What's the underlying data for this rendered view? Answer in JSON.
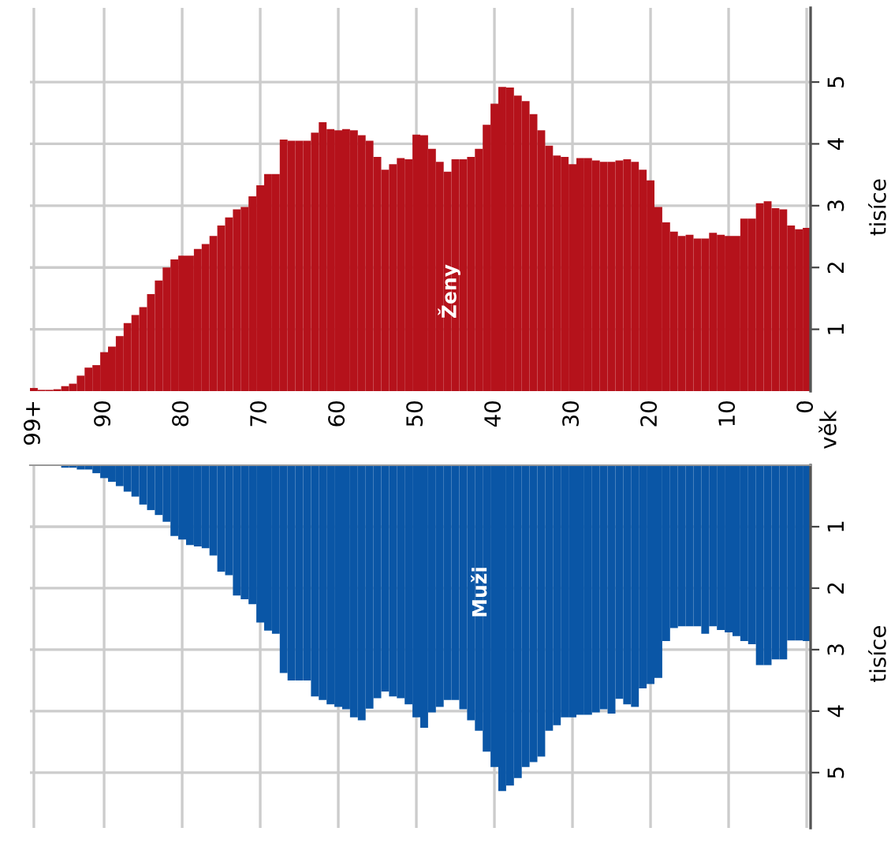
{
  "chart_data": [
    {
      "type": "bar",
      "annotations": [
        "věk"
      ],
      "ylabel": "tisíce",
      "x": [
        0,
        1,
        2,
        3,
        4,
        5,
        6,
        7,
        8,
        9,
        10,
        11,
        12,
        13,
        14,
        15,
        16,
        17,
        18,
        19,
        20,
        21,
        22,
        23,
        24,
        25,
        26,
        27,
        28,
        29,
        30,
        31,
        32,
        33,
        34,
        35,
        36,
        37,
        38,
        39,
        40,
        41,
        42,
        43,
        44,
        45,
        46,
        47,
        48,
        49,
        50,
        51,
        52,
        53,
        54,
        55,
        56,
        57,
        58,
        59,
        60,
        61,
        62,
        63,
        64,
        65,
        66,
        67,
        68,
        69,
        70,
        71,
        72,
        73,
        74,
        75,
        76,
        77,
        78,
        79,
        80,
        81,
        82,
        83,
        84,
        85,
        86,
        87,
        88,
        89,
        90,
        91,
        92,
        93,
        94,
        95,
        96,
        97,
        98,
        99
      ],
      "series": [
        {
          "name": "Ženy",
          "color": "#b5121b",
          "values": [
            2.64,
            2.62,
            2.68,
            2.94,
            2.96,
            3.07,
            3.04,
            2.79,
            2.79,
            2.51,
            2.51,
            2.53,
            2.56,
            2.47,
            2.47,
            2.53,
            2.51,
            2.58,
            2.73,
            2.98,
            3.41,
            3.58,
            3.71,
            3.75,
            3.73,
            3.71,
            3.71,
            3.73,
            3.77,
            3.77,
            3.67,
            3.79,
            3.81,
            3.97,
            4.22,
            4.48,
            4.69,
            4.78,
            4.91,
            4.92,
            4.65,
            4.31,
            3.92,
            3.79,
            3.75,
            3.75,
            3.55,
            3.71,
            3.92,
            4.14,
            4.15,
            3.75,
            3.77,
            3.67,
            3.58,
            3.79,
            4.05,
            4.14,
            4.22,
            4.24,
            4.22,
            4.24,
            4.35,
            4.18,
            4.05,
            4.05,
            4.05,
            4.07,
            3.51,
            3.51,
            3.33,
            3.15,
            2.98,
            2.94,
            2.81,
            2.68,
            2.51,
            2.38,
            2.3,
            2.19,
            2.19,
            2.13,
            2.0,
            1.79,
            1.57,
            1.36,
            1.23,
            1.1,
            0.89,
            0.72,
            0.63,
            0.42,
            0.38,
            0.25,
            0.12,
            0.08,
            0.03,
            0.02,
            0.02,
            0.05
          ]
        }
      ],
      "xlim": [
        99.5,
        -0.5
      ],
      "xticks": [
        0,
        10,
        20,
        30,
        40,
        50,
        60,
        70,
        80,
        90,
        {
          "value": 99,
          "label": "99+"
        }
      ],
      "ylim": [
        0,
        6.2
      ],
      "yticks": [
        1,
        2,
        3,
        4,
        5
      ],
      "grid": true
    },
    {
      "type": "bar",
      "ylabel": "tisíce",
      "tick_labels": "y",
      "x": [
        0,
        1,
        2,
        3,
        4,
        5,
        6,
        7,
        8,
        9,
        10,
        11,
        12,
        13,
        14,
        15,
        16,
        17,
        18,
        19,
        20,
        21,
        22,
        23,
        24,
        25,
        26,
        27,
        28,
        29,
        30,
        31,
        32,
        33,
        34,
        35,
        36,
        37,
        38,
        39,
        40,
        41,
        42,
        43,
        44,
        45,
        46,
        47,
        48,
        49,
        50,
        51,
        52,
        53,
        54,
        55,
        56,
        57,
        58,
        59,
        60,
        61,
        62,
        63,
        64,
        65,
        66,
        67,
        68,
        69,
        70,
        71,
        72,
        73,
        74,
        75,
        76,
        77,
        78,
        79,
        80,
        81,
        82,
        83,
        84,
        85,
        86,
        87,
        88,
        89,
        90,
        91,
        92,
        93,
        94,
        95,
        96,
        97,
        98,
        99
      ],
      "series": [
        {
          "name": "Muži",
          "color": "#0a56a6",
          "values": [
            2.86,
            2.85,
            2.85,
            3.16,
            3.16,
            3.25,
            3.25,
            2.91,
            2.86,
            2.78,
            2.72,
            2.68,
            2.62,
            2.74,
            2.62,
            2.62,
            2.62,
            2.65,
            2.86,
            3.46,
            3.56,
            3.63,
            3.93,
            3.89,
            3.8,
            4.04,
            3.97,
            4.02,
            4.06,
            4.06,
            4.1,
            4.1,
            4.23,
            4.32,
            4.74,
            4.83,
            4.91,
            5.09,
            5.21,
            5.3,
            4.91,
            4.66,
            4.32,
            4.15,
            3.97,
            3.82,
            3.82,
            3.93,
            4.02,
            4.27,
            4.1,
            3.89,
            3.79,
            3.76,
            3.68,
            3.79,
            3.96,
            4.15,
            4.1,
            3.97,
            3.93,
            3.89,
            3.82,
            3.76,
            3.5,
            3.5,
            3.5,
            3.38,
            2.74,
            2.69,
            2.56,
            2.26,
            2.18,
            2.12,
            1.79,
            1.73,
            1.47,
            1.35,
            1.32,
            1.3,
            1.21,
            1.15,
            0.92,
            0.81,
            0.73,
            0.64,
            0.51,
            0.43,
            0.34,
            0.27,
            0.21,
            0.13,
            0.07,
            0.07,
            0.04,
            0.04,
            0,
            0,
            0,
            0
          ]
        }
      ],
      "xlim": [
        99.5,
        -0.5
      ],
      "xticks": [
        0,
        10,
        20,
        30,
        40,
        50,
        60,
        70,
        80,
        90,
        {
          "value": 99,
          "label": null
        }
      ],
      "ylim": [
        5.9,
        0
      ],
      "yticks": [
        1,
        2,
        3,
        4,
        5
      ],
      "grid": true
    }
  ]
}
